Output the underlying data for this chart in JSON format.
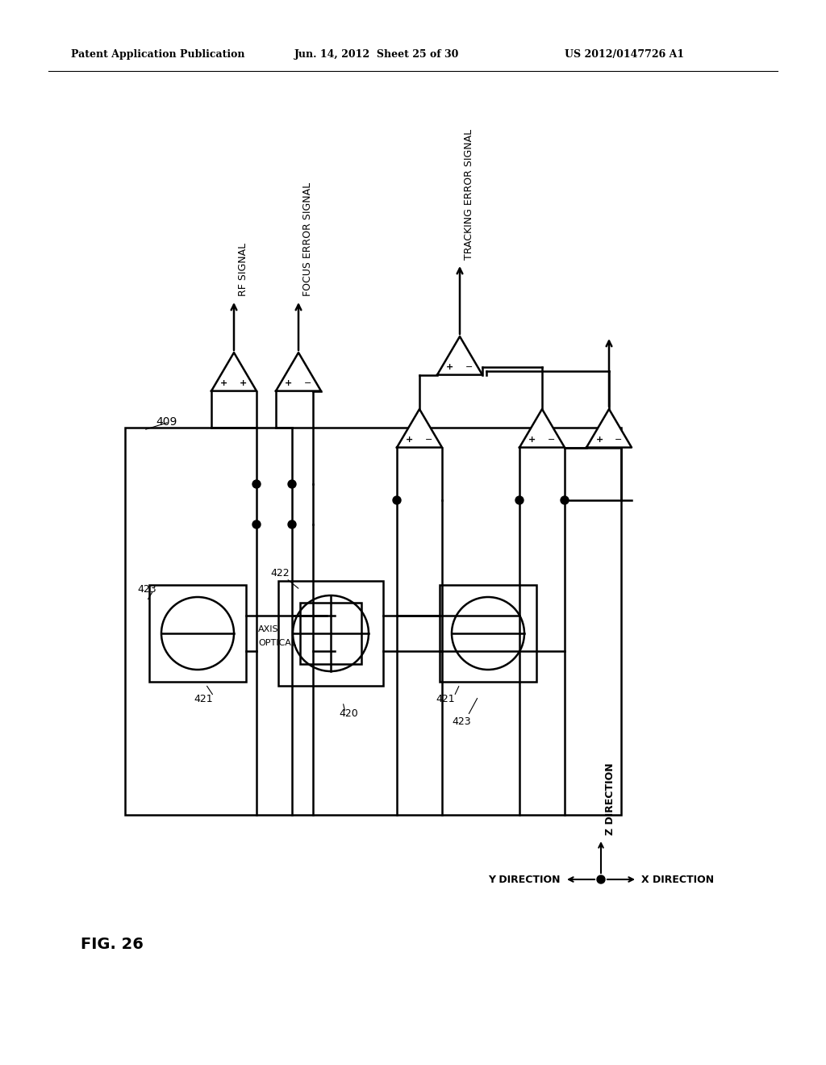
{
  "bg_color": "#ffffff",
  "header_left": "Patent Application Publication",
  "header_mid": "Jun. 14, 2012  Sheet 25 of 30",
  "header_right": "US 2012/0147726 A1",
  "fig_label": "FIG. 26"
}
